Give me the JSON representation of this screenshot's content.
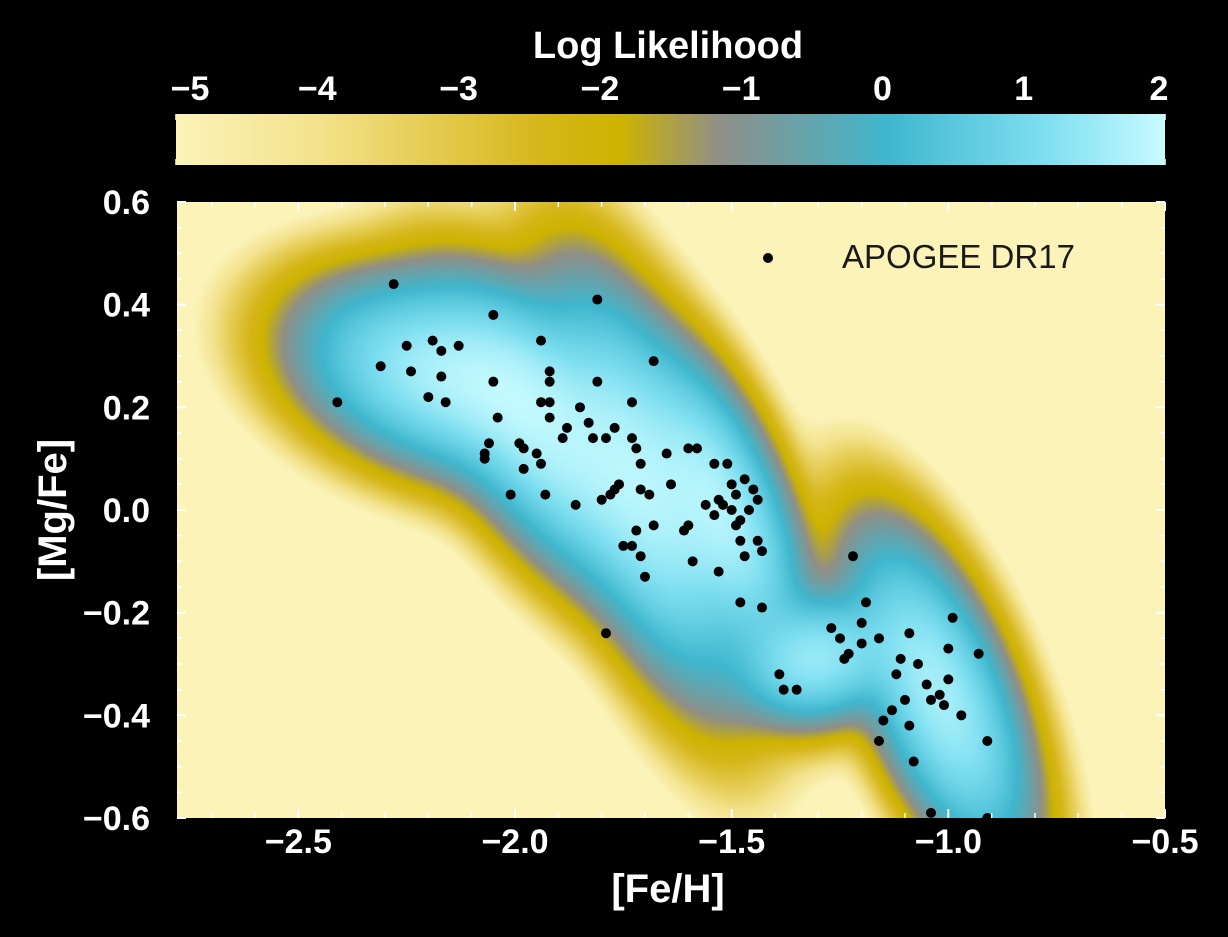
{
  "colors": {
    "background": "#000000",
    "text": "#ffffff",
    "points": "#000000",
    "colormap": [
      "#fbf3b8",
      "#f4e38d",
      "#d6b619",
      "#cdb300",
      "#8f8f87",
      "#3fb7ce",
      "#7fdff1",
      "#c7fbff"
    ]
  },
  "chart_data": {
    "type": "scatter",
    "title": "",
    "xlabel": "[Fe/H]",
    "ylabel": "[Mg/Fe]",
    "xlim": [
      -2.78,
      -0.5
    ],
    "ylim": [
      -0.6,
      0.6
    ],
    "x_ticks": [
      -2.5,
      -2.0,
      -1.5,
      -1.0,
      -0.5
    ],
    "x_tick_labels": [
      "−2.5",
      "−2.0",
      "−1.5",
      "−1.0",
      "−0.5"
    ],
    "y_ticks": [
      0.6,
      0.4,
      0.2,
      0.0,
      -0.2,
      -0.4,
      -0.6
    ],
    "y_tick_labels": [
      "0.6",
      "0.4",
      "0.2",
      "0.0",
      "−0.2",
      "−0.4",
      "−0.6"
    ],
    "colorbar": {
      "label": "Log Likelihood",
      "range": [
        -5,
        2
      ],
      "ticks": [
        -5,
        -4,
        -3,
        -2,
        -1,
        0,
        1,
        2
      ],
      "tick_labels": [
        "−5",
        "−4",
        "−3",
        "−2",
        "−1",
        "0",
        "1",
        "2"
      ]
    },
    "density_components": [
      {
        "mean": [
          -2.16,
          0.26
        ],
        "sd": [
          0.16,
          0.09
        ],
        "rho": -0.3,
        "w": 1.0
      },
      {
        "mean": [
          -1.92,
          0.14
        ],
        "sd": [
          0.13,
          0.14
        ],
        "rho": -0.6,
        "w": 1.0
      },
      {
        "mean": [
          -1.7,
          0.05
        ],
        "sd": [
          0.11,
          0.19
        ],
        "rho": -0.6,
        "w": 1.0
      },
      {
        "mean": [
          -1.52,
          0.0
        ],
        "sd": [
          0.09,
          0.14
        ],
        "rho": -0.6,
        "w": 1.0
      },
      {
        "mean": [
          -1.02,
          -0.36
        ],
        "sd": [
          0.1,
          0.15
        ],
        "rho": -0.6,
        "w": 1.0
      },
      {
        "mean": [
          -1.3,
          -0.29
        ],
        "sd": [
          0.09,
          0.06
        ],
        "rho": 0.1,
        "w": 0.8
      }
    ],
    "grid": false,
    "legend_position": "top-right",
    "series": [
      {
        "name": "APOGEE DR17",
        "points": [
          [
            -2.28,
            0.44
          ],
          [
            -2.41,
            0.21
          ],
          [
            -2.31,
            0.28
          ],
          [
            -2.25,
            0.32
          ],
          [
            -2.24,
            0.27
          ],
          [
            -2.19,
            0.33
          ],
          [
            -2.17,
            0.31
          ],
          [
            -2.17,
            0.26
          ],
          [
            -2.2,
            0.22
          ],
          [
            -2.16,
            0.21
          ],
          [
            -2.13,
            0.32
          ],
          [
            -2.05,
            0.38
          ],
          [
            -1.81,
            0.41
          ],
          [
            -1.94,
            0.33
          ],
          [
            -1.68,
            0.29
          ],
          [
            -2.05,
            0.25
          ],
          [
            -1.92,
            0.27
          ],
          [
            -1.92,
            0.25
          ],
          [
            -1.81,
            0.25
          ],
          [
            -1.73,
            0.21
          ],
          [
            -1.94,
            0.21
          ],
          [
            -1.92,
            0.21
          ],
          [
            -1.92,
            0.18
          ],
          [
            -1.85,
            0.2
          ],
          [
            -2.04,
            0.18
          ],
          [
            -1.88,
            0.16
          ],
          [
            -1.83,
            0.17
          ],
          [
            -1.89,
            0.14
          ],
          [
            -1.82,
            0.14
          ],
          [
            -1.79,
            0.14
          ],
          [
            -1.77,
            0.16
          ],
          [
            -1.73,
            0.14
          ],
          [
            -1.72,
            0.12
          ],
          [
            -2.06,
            0.13
          ],
          [
            -2.07,
            0.11
          ],
          [
            -2.07,
            0.1
          ],
          [
            -1.99,
            0.13
          ],
          [
            -1.98,
            0.12
          ],
          [
            -1.95,
            0.11
          ],
          [
            -1.94,
            0.09
          ],
          [
            -1.98,
            0.08
          ],
          [
            -1.71,
            0.09
          ],
          [
            -1.65,
            0.11
          ],
          [
            -1.6,
            0.12
          ],
          [
            -1.58,
            0.12
          ],
          [
            -1.54,
            0.09
          ],
          [
            -1.51,
            0.09
          ],
          [
            -1.47,
            0.06
          ],
          [
            -1.5,
            0.05
          ],
          [
            -1.49,
            0.03
          ],
          [
            -1.45,
            0.04
          ],
          [
            -1.44,
            0.02
          ],
          [
            -1.46,
            0.0
          ],
          [
            -1.48,
            -0.02
          ],
          [
            -1.5,
            0.0
          ],
          [
            -1.52,
            0.01
          ],
          [
            -1.53,
            0.02
          ],
          [
            -1.54,
            -0.01
          ],
          [
            -1.56,
            0.01
          ],
          [
            -1.76,
            0.05
          ],
          [
            -1.77,
            0.04
          ],
          [
            -1.78,
            0.03
          ],
          [
            -1.8,
            0.02
          ],
          [
            -1.71,
            0.04
          ],
          [
            -1.69,
            0.03
          ],
          [
            -1.64,
            0.05
          ],
          [
            -1.68,
            -0.03
          ],
          [
            -1.72,
            -0.04
          ],
          [
            -1.73,
            -0.07
          ],
          [
            -1.75,
            -0.07
          ],
          [
            -1.71,
            -0.09
          ],
          [
            -1.7,
            -0.13
          ],
          [
            -1.61,
            -0.04
          ],
          [
            -1.6,
            -0.03
          ],
          [
            -1.59,
            -0.1
          ],
          [
            -1.49,
            -0.03
          ],
          [
            -1.48,
            -0.06
          ],
          [
            -1.47,
            -0.09
          ],
          [
            -1.44,
            -0.06
          ],
          [
            -1.43,
            -0.08
          ],
          [
            -1.53,
            -0.12
          ],
          [
            -1.48,
            -0.18
          ],
          [
            -1.43,
            -0.19
          ],
          [
            -2.01,
            0.03
          ],
          [
            -1.93,
            0.03
          ],
          [
            -1.86,
            0.01
          ],
          [
            -1.79,
            -0.24
          ],
          [
            -1.22,
            -0.09
          ],
          [
            -1.27,
            -0.23
          ],
          [
            -1.25,
            -0.25
          ],
          [
            -1.2,
            -0.22
          ],
          [
            -1.16,
            -0.25
          ],
          [
            -1.19,
            -0.18
          ],
          [
            -1.23,
            -0.28
          ],
          [
            -1.24,
            -0.29
          ],
          [
            -1.2,
            -0.26
          ],
          [
            -1.39,
            -0.32
          ],
          [
            -1.38,
            -0.35
          ],
          [
            -1.35,
            -0.35
          ],
          [
            -1.12,
            -0.32
          ],
          [
            -1.11,
            -0.29
          ],
          [
            -1.09,
            -0.24
          ],
          [
            -1.07,
            -0.3
          ],
          [
            -1.05,
            -0.34
          ],
          [
            -1.04,
            -0.37
          ],
          [
            -1.1,
            -0.37
          ],
          [
            -1.13,
            -0.39
          ],
          [
            -1.15,
            -0.41
          ],
          [
            -1.09,
            -0.42
          ],
          [
            -1.02,
            -0.36
          ],
          [
            -1.01,
            -0.38
          ],
          [
            -1.0,
            -0.33
          ],
          [
            -1.0,
            -0.27
          ],
          [
            -0.99,
            -0.21
          ],
          [
            -0.93,
            -0.28
          ],
          [
            -0.97,
            -0.4
          ],
          [
            -1.08,
            -0.49
          ],
          [
            -1.16,
            -0.45
          ],
          [
            -0.91,
            -0.45
          ],
          [
            -1.04,
            -0.59
          ],
          [
            -0.91,
            -0.6
          ]
        ]
      }
    ]
  }
}
